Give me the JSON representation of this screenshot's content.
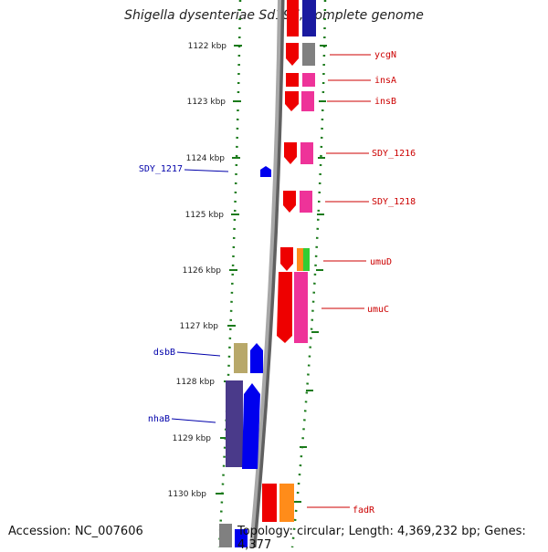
{
  "header": {
    "title": "Shigella dysenteriae Sd197, complete genome"
  },
  "footer": {
    "accession": "Accession: NC_007606",
    "topology": "Topology: circular; Length: 4,369,232 bp; Genes: 4,377"
  },
  "scale": {
    "ticks": [
      {
        "label": "1122 kbp"
      },
      {
        "label": "1123 kbp"
      },
      {
        "label": "1124 kbp"
      },
      {
        "label": "1125 kbp"
      },
      {
        "label": "1126 kbp"
      },
      {
        "label": "1127 kbp"
      },
      {
        "label": "1128 kbp"
      },
      {
        "label": "1129 kbp"
      },
      {
        "label": "1130 kbp"
      }
    ]
  },
  "genes": {
    "right": [
      {
        "name": "ycgN"
      },
      {
        "name": "insA"
      },
      {
        "name": "insB"
      },
      {
        "name": "SDY_1216"
      },
      {
        "name": "SDY_1218"
      },
      {
        "name": "umuD"
      },
      {
        "name": "umuC"
      },
      {
        "name": "fadR"
      }
    ],
    "left": [
      {
        "name": "SDY_1217"
      },
      {
        "name": "dsbB"
      },
      {
        "name": "nhaB"
      }
    ]
  },
  "colors": {
    "right_label": "#cc0000",
    "left_label": "#0000aa",
    "backbone": "#909090",
    "tick": "#1a7a1a",
    "red": "#ee0000",
    "pink": "#ee3399",
    "gray": "#808080",
    "blue": "#0000ee",
    "navy": "#1a1aa0",
    "orange": "#ff8c1a",
    "green": "#33cc33",
    "khaki": "#b8a86a",
    "purple": "#4a3a8a"
  }
}
